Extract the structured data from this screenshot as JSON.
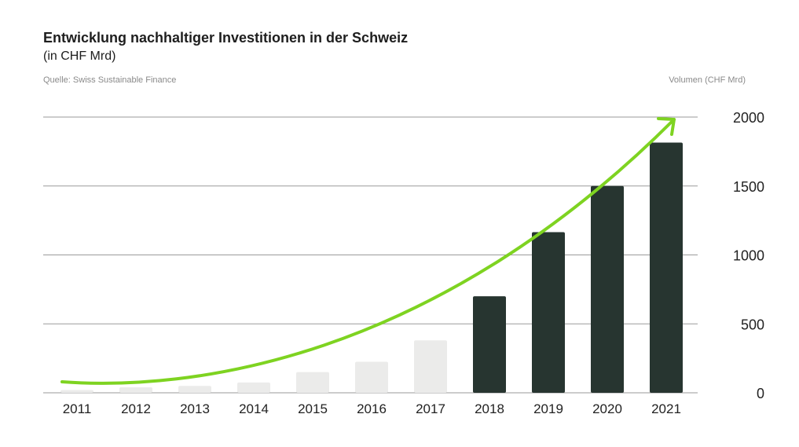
{
  "header": {
    "title": "Entwicklung nachhaltiger Investitionen in der Schweiz",
    "subtitle": "(in CHF Mrd)",
    "source": "Quelle: Swiss Sustainable Finance",
    "unit_label": "Volumen (CHF Mrd)"
  },
  "colors": {
    "bar_light": "#ebebea",
    "bar_dark": "#273530",
    "trend": "#7ed321",
    "grid": "#9a9a9a"
  },
  "chart_data": {
    "type": "bar",
    "title": "Entwicklung nachhaltiger Investitionen in der Schweiz",
    "subtitle": "(in CHF Mrd)",
    "xlabel": "",
    "ylabel": "Volumen (CHF Mrd)",
    "categories": [
      "2011",
      "2012",
      "2013",
      "2014",
      "2015",
      "2016",
      "2017",
      "2018",
      "2019",
      "2020",
      "2021"
    ],
    "values": [
      20,
      40,
      50,
      75,
      150,
      225,
      380,
      700,
      1165,
      1500,
      1815
    ],
    "highlight_from_index": 7,
    "ylim": [
      0,
      2000
    ],
    "yticks": [
      0,
      500,
      1000,
      1500,
      2000
    ],
    "grid": true,
    "trend_arrow": {
      "from_value": 80,
      "to_value": 2000
    }
  }
}
